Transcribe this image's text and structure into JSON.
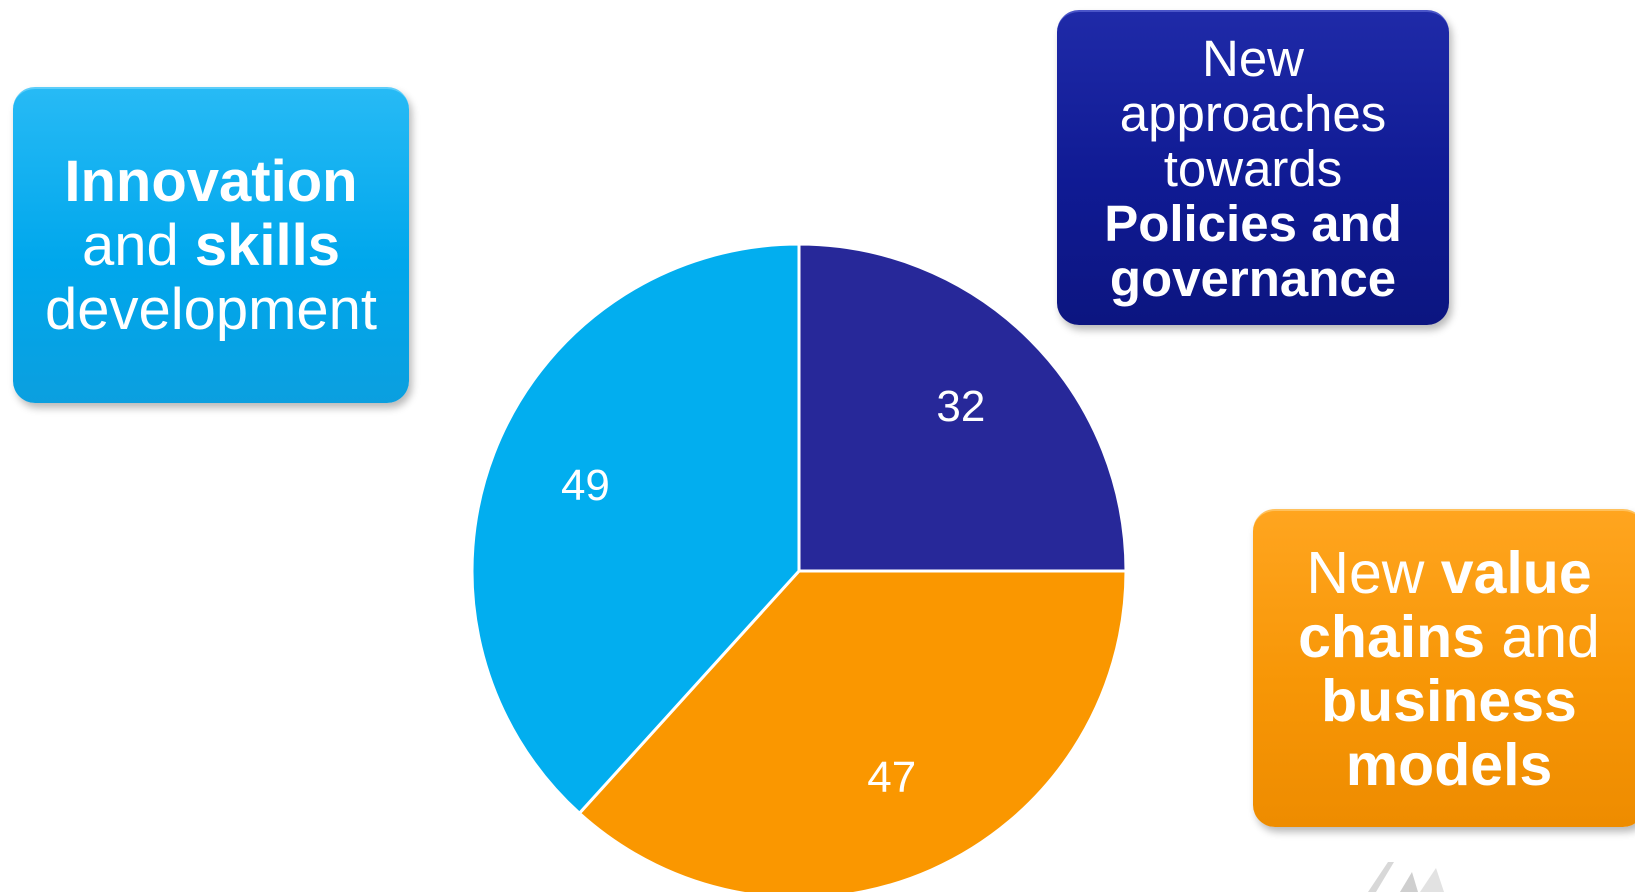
{
  "chart_data": {
    "type": "pie",
    "categories": [
      "New approaches towards Policies and governance",
      "New value chains and business models",
      "Innovation and skills development"
    ],
    "values": [
      32,
      47,
      49
    ],
    "colors": [
      "#272899",
      "#fa9700",
      "#02aeef"
    ],
    "data_labels": [
      "32",
      "47",
      "49"
    ],
    "start_angle_deg": 0,
    "direction": "clockwise"
  },
  "boxes": {
    "innovation": {
      "color": "#02a9ee",
      "lines": [
        [
          {
            "text": "Innovation",
            "bold": true
          }
        ],
        [
          {
            "text": "and ",
            "bold": false
          },
          {
            "text": "skills",
            "bold": true
          }
        ],
        [
          {
            "text": "development",
            "bold": false
          }
        ]
      ]
    },
    "policies": {
      "color": "#141f96",
      "lines": [
        [
          {
            "text": "New",
            "bold": false
          }
        ],
        [
          {
            "text": "approaches",
            "bold": false
          }
        ],
        [
          {
            "text": "towards",
            "bold": false
          }
        ],
        [
          {
            "text": "Policies and",
            "bold": true
          }
        ],
        [
          {
            "text": "governance",
            "bold": true
          }
        ]
      ]
    },
    "value": {
      "color": "#f79606",
      "lines": [
        [
          {
            "text": "New ",
            "bold": false
          },
          {
            "text": "value",
            "bold": true
          }
        ],
        [
          {
            "text": "chains",
            "bold": true
          },
          {
            "text": " and",
            "bold": false
          }
        ],
        [
          {
            "text": "business",
            "bold": true
          }
        ],
        [
          {
            "text": "models",
            "bold": true
          }
        ]
      ]
    }
  },
  "decoration": {
    "logo_icon": "partial-logo-mark"
  }
}
